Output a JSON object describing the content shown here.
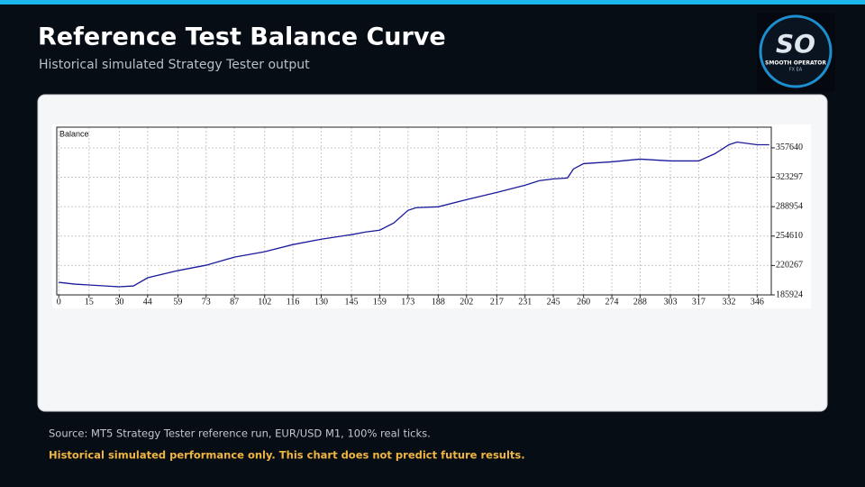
{
  "header": {
    "title": "Reference Test Balance Curve",
    "subtitle": "Historical simulated Strategy Tester output"
  },
  "logo": {
    "mark": "SO",
    "name": "SMOOTH OPERATOR",
    "tag": "FX EA"
  },
  "chart_data": {
    "type": "line",
    "x": [
      0,
      8,
      15,
      30,
      37,
      44,
      59,
      73,
      87,
      102,
      116,
      130,
      145,
      152,
      159,
      166,
      173,
      177,
      188,
      202,
      217,
      231,
      238,
      245,
      252,
      255,
      260,
      274,
      288,
      303,
      317,
      325,
      332,
      336,
      346,
      352
    ],
    "series": [
      {
        "name": "Balance",
        "color": "#1a1a9c",
        "values": [
          200600,
          198500,
          197500,
          195400,
          196400,
          205900,
          214300,
          220600,
          230000,
          236300,
          244700,
          251000,
          256300,
          259400,
          261500,
          269900,
          284600,
          287800,
          288800,
          297200,
          305600,
          314000,
          319300,
          321400,
          322400,
          333000,
          339200,
          341300,
          344500,
          342400,
          342400,
          350700,
          361300,
          364400,
          361300,
          361300
        ]
      }
    ],
    "xlim": [
      -1,
      353
    ],
    "ylim": [
      185924,
      381800
    ],
    "xticks": [
      0,
      15,
      30,
      44,
      59,
      73,
      87,
      102,
      116,
      130,
      145,
      159,
      173,
      188,
      202,
      217,
      231,
      245,
      260,
      274,
      288,
      303,
      317,
      332,
      346
    ],
    "yticks": [
      185924,
      220267,
      254610,
      288954,
      323297,
      357640
    ],
    "grid": true
  },
  "footer": {
    "source": "Source: MT5 Strategy Tester reference run, EUR/USD M1, 100% real ticks.",
    "disclaimer": "Historical simulated performance only. This chart does not predict future results."
  }
}
